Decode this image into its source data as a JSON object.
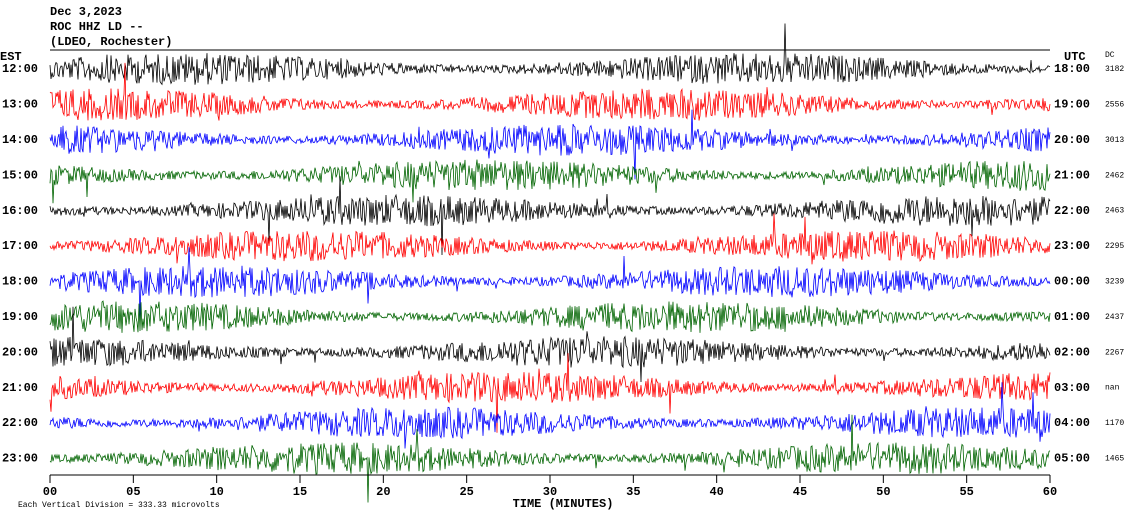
{
  "header": {
    "date": "Dec 3,2023",
    "station": "ROC HHZ LD --",
    "network": "(LDEO, Rochester)"
  },
  "left_title": "EST",
  "right_title": "UTC",
  "dc_title": "DC",
  "rows": [
    {
      "est": "12:00",
      "utc": "18:00",
      "dc": "3182",
      "color": "#000000"
    },
    {
      "est": "13:00",
      "utc": "19:00",
      "dc": "2556",
      "color": "#ff0000"
    },
    {
      "est": "14:00",
      "utc": "20:00",
      "dc": "3013",
      "color": "#0000ff"
    },
    {
      "est": "15:00",
      "utc": "21:00",
      "dc": "2462",
      "color": "#006400"
    },
    {
      "est": "16:00",
      "utc": "22:00",
      "dc": "2463",
      "color": "#000000"
    },
    {
      "est": "17:00",
      "utc": "23:00",
      "dc": "2295",
      "color": "#ff0000"
    },
    {
      "est": "18:00",
      "utc": "00:00",
      "dc": "3239",
      "color": "#0000ff"
    },
    {
      "est": "19:00",
      "utc": "01:00",
      "dc": "2437",
      "color": "#006400"
    },
    {
      "est": "20:00",
      "utc": "02:00",
      "dc": "2267",
      "color": "#000000"
    },
    {
      "est": "21:00",
      "utc": "03:00",
      "dc": "nan",
      "color": "#ff0000"
    },
    {
      "est": "22:00",
      "utc": "04:00",
      "dc": "1170",
      "color": "#0000ff"
    },
    {
      "est": "23:00",
      "utc": "05:00",
      "dc": "1465",
      "color": "#006400"
    }
  ],
  "x_axis": {
    "title": "TIME (MINUTES)",
    "xlim": [
      0,
      60
    ],
    "ticks": [
      {
        "value": 0,
        "label": "00"
      },
      {
        "value": 5,
        "label": "05"
      },
      10,
      15,
      20,
      25,
      30,
      35,
      40,
      45,
      50,
      55,
      60
    ]
  },
  "footnote": "Each Vertical Division = 333.33 microvolts"
}
